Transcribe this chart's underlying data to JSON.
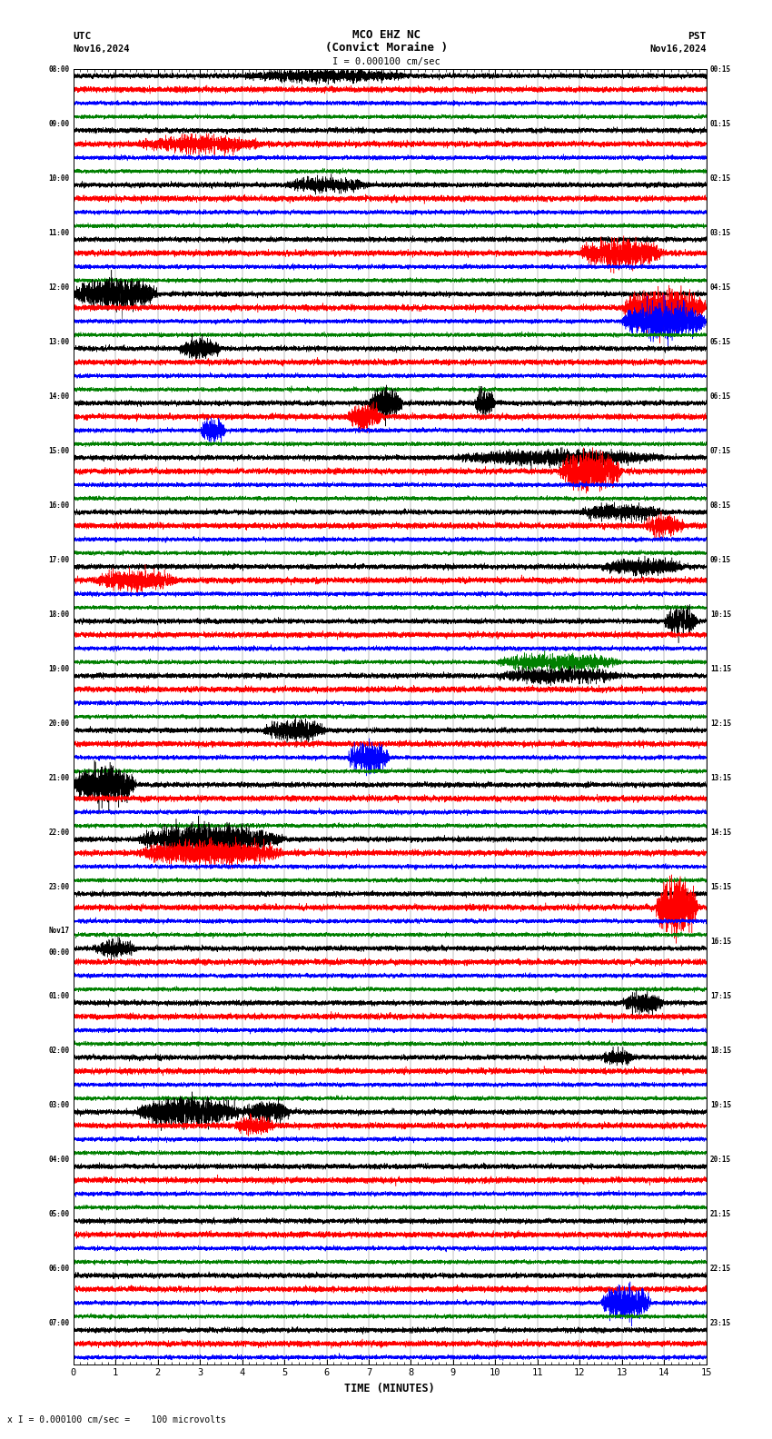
{
  "title_line1": "MCO EHZ NC",
  "title_line2": "(Convict Moraine )",
  "scale_text": "I = 0.000100 cm/sec",
  "utc_label": "UTC",
  "utc_date": "Nov16,2024",
  "pst_label": "PST",
  "pst_date": "Nov16,2024",
  "footer_text": "x I = 0.000100 cm/sec =    100 microvolts",
  "xlabel": "TIME (MINUTES)",
  "bg_color": "#ffffff",
  "line_colors": [
    "black",
    "red",
    "blue",
    "green"
  ],
  "left_times_utc": [
    "08:00",
    "",
    "",
    "",
    "09:00",
    "",
    "",
    "",
    "10:00",
    "",
    "",
    "",
    "11:00",
    "",
    "",
    "",
    "12:00",
    "",
    "",
    "",
    "13:00",
    "",
    "",
    "",
    "14:00",
    "",
    "",
    "",
    "15:00",
    "",
    "",
    "",
    "16:00",
    "",
    "",
    "",
    "17:00",
    "",
    "",
    "",
    "18:00",
    "",
    "",
    "",
    "19:00",
    "",
    "",
    "",
    "20:00",
    "",
    "",
    "",
    "21:00",
    "",
    "",
    "",
    "22:00",
    "",
    "",
    "",
    "23:00",
    "",
    "",
    "",
    "Nov17\n00:00",
    "",
    "",
    "",
    "01:00",
    "",
    "",
    "",
    "02:00",
    "",
    "",
    "",
    "03:00",
    "",
    "",
    "",
    "04:00",
    "",
    "",
    "",
    "05:00",
    "",
    "",
    "",
    "06:00",
    "",
    "",
    "",
    "07:00",
    "",
    ""
  ],
  "right_times_pst": [
    "00:15",
    "",
    "",
    "",
    "01:15",
    "",
    "",
    "",
    "02:15",
    "",
    "",
    "",
    "03:15",
    "",
    "",
    "",
    "04:15",
    "",
    "",
    "",
    "05:15",
    "",
    "",
    "",
    "06:15",
    "",
    "",
    "",
    "07:15",
    "",
    "",
    "",
    "08:15",
    "",
    "",
    "",
    "09:15",
    "",
    "",
    "",
    "10:15",
    "",
    "",
    "",
    "11:15",
    "",
    "",
    "",
    "12:15",
    "",
    "",
    "",
    "13:15",
    "",
    "",
    "",
    "14:15",
    "",
    "",
    "",
    "15:15",
    "",
    "",
    "",
    "16:15",
    "",
    "",
    "",
    "17:15",
    "",
    "",
    "",
    "18:15",
    "",
    "",
    "",
    "19:15",
    "",
    "",
    "",
    "20:15",
    "",
    "",
    "",
    "21:15",
    "",
    "",
    "",
    "22:15",
    "",
    "",
    "",
    "23:15",
    "",
    ""
  ],
  "n_rows": 95,
  "minutes": 15,
  "noise_seed": 42,
  "noise_base_amp": 0.3,
  "trace_scale": 0.42
}
